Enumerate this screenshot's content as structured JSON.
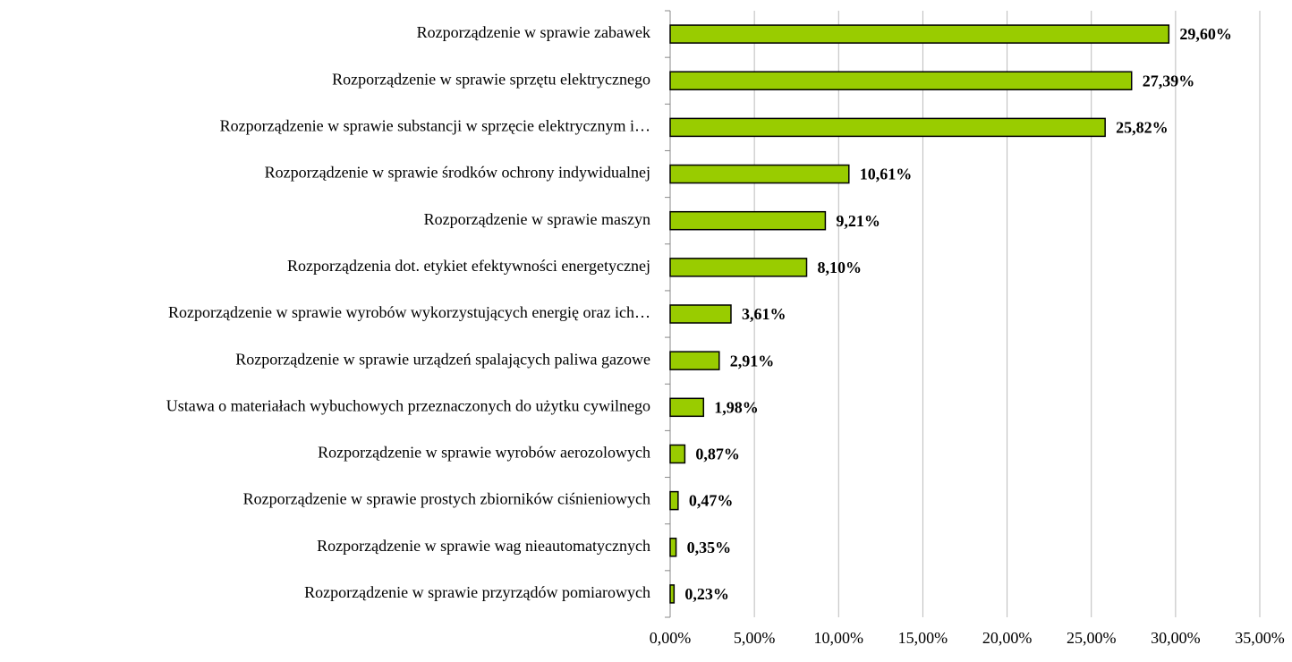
{
  "chart_data": {
    "type": "bar",
    "orientation": "horizontal",
    "categories": [
      "Rozporządzenie w sprawie zabawek",
      "Rozporządzenie w sprawie sprzętu elektrycznego",
      "Rozporządzenie w sprawie substancji w sprzęcie elektrycznym i…",
      "Rozporządzenie w sprawie środków ochrony indywidualnej",
      "Rozporządzenie w sprawie maszyn",
      "Rozporządzenia dot. etykiet efektywności energetycznej",
      "Rozporządzenie w sprawie wyrobów wykorzystujących energię oraz ich…",
      "Rozporządzenie w sprawie urządzeń spalających paliwa gazowe",
      "Ustawa o materiałach wybuchowych przeznaczonych do użytku cywilnego",
      "Rozporządzenie w sprawie wyrobów aerozolowych",
      "Rozporządzenie w sprawie prostych zbiorników ciśnieniowych",
      "Rozporządzenie w sprawie wag nieautomatycznych",
      "Rozporządzenie w sprawie przyrządów pomiarowych"
    ],
    "values": [
      29.6,
      27.39,
      25.82,
      10.61,
      9.21,
      8.1,
      3.61,
      2.91,
      1.98,
      0.87,
      0.47,
      0.35,
      0.23
    ],
    "value_labels": [
      "29,60%",
      "27,39%",
      "25,82%",
      "10,61%",
      "9,21%",
      "8,10%",
      "3,61%",
      "2,91%",
      "1,98%",
      "0,87%",
      "0,47%",
      "0,35%",
      "0,23%"
    ],
    "color": "#99cc00",
    "xlim": [
      0,
      35
    ],
    "xticks": [
      {
        "value": 0,
        "label": "0,00%"
      },
      {
        "value": 5,
        "label": "5,00%"
      },
      {
        "value": 10,
        "label": "10,00%"
      },
      {
        "value": 15,
        "label": "15,00%"
      },
      {
        "value": 20,
        "label": "20,00%"
      },
      {
        "value": 25,
        "label": "25,00%"
      },
      {
        "value": 30,
        "label": "30,00%"
      },
      {
        "value": 35,
        "label": "35,00%"
      }
    ],
    "grid": true
  }
}
